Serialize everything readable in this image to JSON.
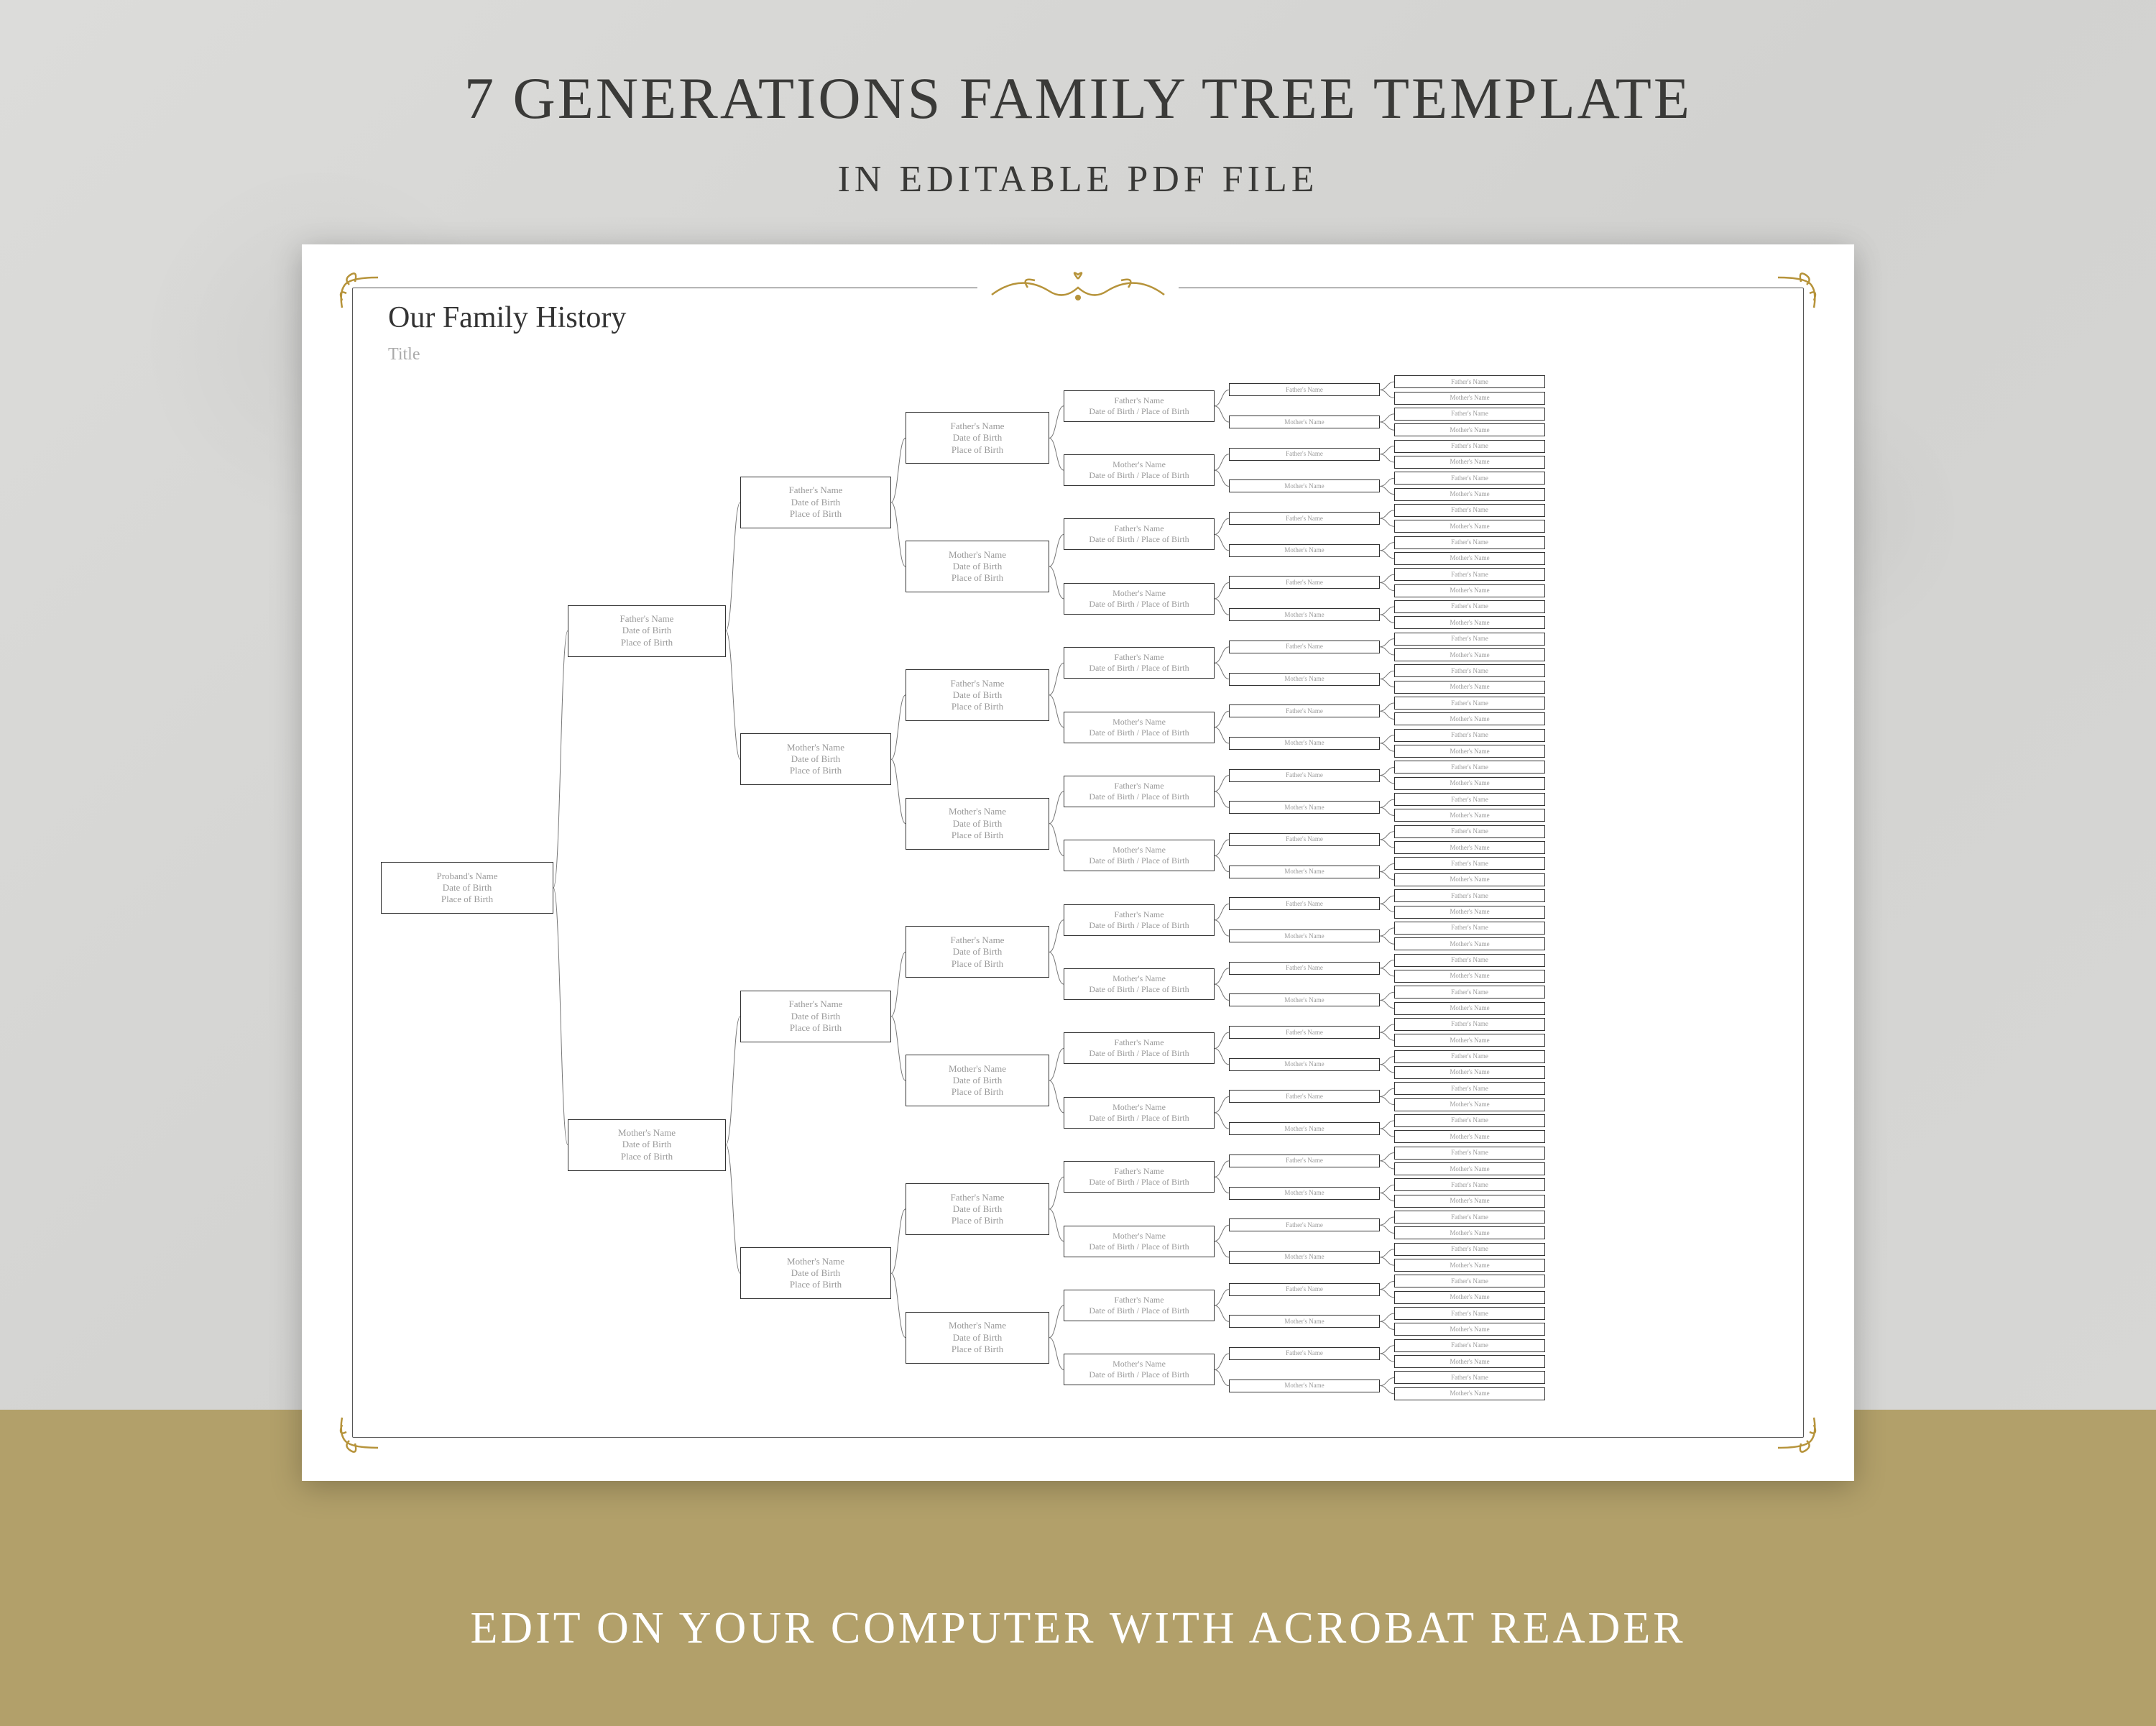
{
  "headline": "7 GENERATIONS FAMILY TREE TEMPLATE",
  "subheadline": "IN EDITABLE PDF FILE",
  "footer": "EDIT ON YOUR COMPUTER WITH ACROBAT READER",
  "colors": {
    "marble": "#d8d8d6",
    "band": "#b2a06a",
    "ornament": "#b6933a",
    "text": "#3a3a38"
  },
  "sheet": {
    "script_title": "Our Family History",
    "title_label": "Title"
  },
  "labels": {
    "proband": "Proband's Name",
    "father": "Father's Name",
    "mother": "Mother's Name",
    "dob": "Date of Birth",
    "pob": "Place of Birth",
    "dob_pob": "Date of Birth / Place of Birth"
  },
  "layout": {
    "tree_height": 1430,
    "gen_counts": [
      1,
      2,
      4,
      8,
      16,
      32,
      64
    ],
    "node_heights": {
      "g1": 72,
      "g2": 72,
      "g3": 72,
      "g4": 72,
      "g5": 44,
      "g6": 18,
      "g7": 18
    }
  }
}
